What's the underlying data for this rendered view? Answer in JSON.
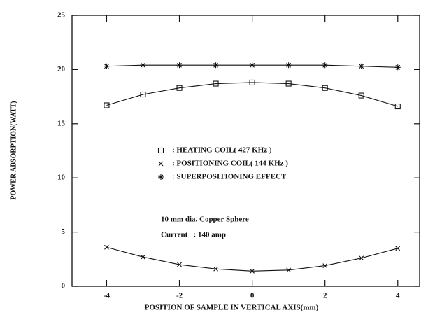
{
  "chart_data": {
    "type": "line",
    "xlabel": "POSITION OF SAMPLE IN VERTICAL AXIS(mm)",
    "ylabel": "POWER ABSORPTION(WATT)",
    "x": [
      -4,
      -3,
      -2,
      -1,
      0,
      1,
      2,
      3,
      4
    ],
    "series": [
      {
        "name": ": HEATING COIL( 427 KHz )",
        "marker": "square",
        "color": "#111111",
        "values": [
          16.7,
          17.7,
          18.3,
          18.7,
          18.8,
          18.7,
          18.3,
          17.6,
          16.6
        ]
      },
      {
        "name": ": POSITIONING COIL( 144 KHz )",
        "marker": "x",
        "color": "#111111",
        "values": [
          3.6,
          2.7,
          2.0,
          1.6,
          1.4,
          1.5,
          1.9,
          2.6,
          3.5
        ]
      },
      {
        "name": ": SUPERPOSITIONING EFFECT",
        "marker": "star",
        "color": "#111111",
        "values": [
          20.3,
          20.4,
          20.4,
          20.4,
          20.4,
          20.4,
          20.4,
          20.3,
          20.2
        ]
      }
    ],
    "annotations": [
      "10 mm dia. Copper Sphere",
      "Current   : 140 amp"
    ],
    "xlim": [
      -4.95,
      4.6
    ],
    "xticks": [
      -4,
      -2,
      0,
      2,
      4
    ],
    "ylim": [
      0,
      25
    ],
    "yticks": [
      0,
      5,
      10,
      15,
      20,
      25
    ]
  }
}
